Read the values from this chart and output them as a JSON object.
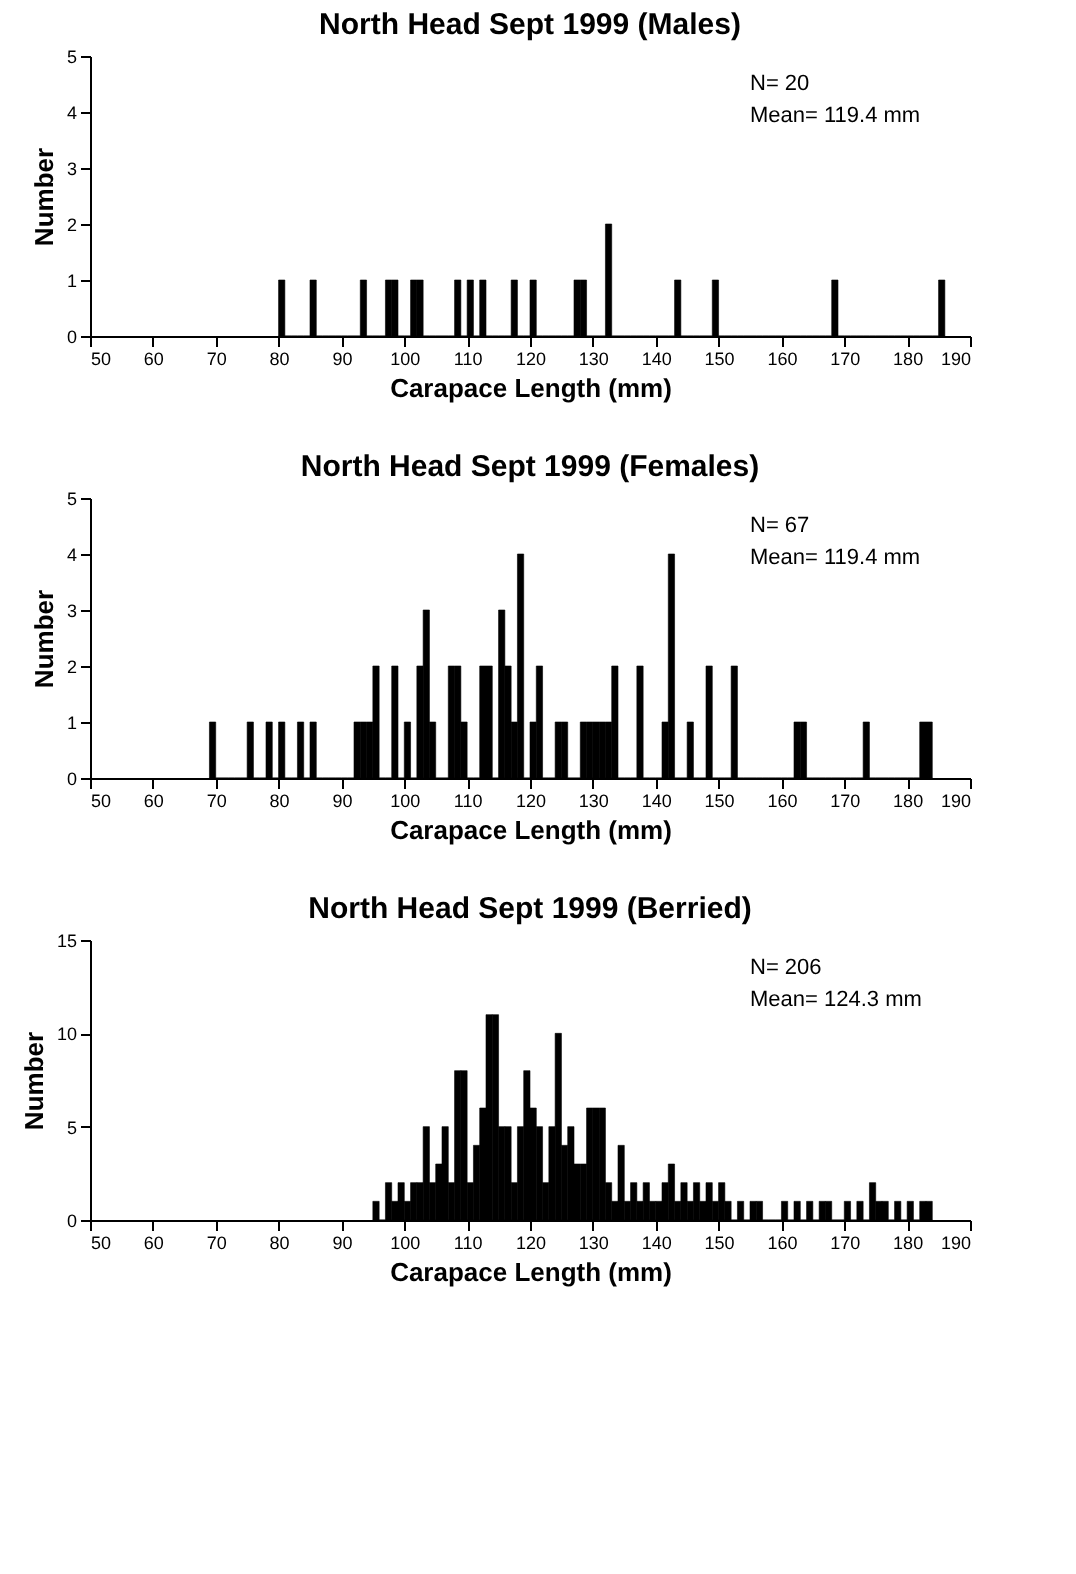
{
  "chart_data": [
    {
      "type": "histogram",
      "title": "North Head Sept 1999 (Males)",
      "xlabel": "Carapace Length (mm)",
      "ylabel": "Number",
      "color": "#000000",
      "bins": [
        80,
        81,
        82,
        83,
        84,
        85,
        86,
        87,
        88,
        89,
        90,
        91,
        92,
        93,
        94,
        95,
        96,
        97,
        98,
        99,
        100,
        101,
        102,
        103,
        104,
        105,
        106,
        107,
        108,
        109,
        110,
        111,
        112,
        113,
        114,
        115,
        116,
        117,
        118,
        119,
        120,
        121,
        122,
        123,
        124,
        125,
        126,
        127,
        128,
        129,
        130,
        131,
        132,
        133,
        134,
        135,
        136,
        137,
        138,
        139,
        140,
        141,
        142,
        143,
        144,
        145,
        146,
        147,
        148,
        149,
        150,
        151,
        152,
        153,
        154,
        155,
        156,
        157,
        158,
        159,
        160,
        161,
        162,
        163,
        164,
        165,
        166,
        167,
        168,
        169,
        170,
        171,
        172,
        173,
        174,
        175,
        176,
        177,
        178,
        179,
        180,
        181,
        182,
        183,
        184,
        185,
        186
      ],
      "values": [
        1,
        0,
        0,
        0,
        0,
        1,
        0,
        0,
        0,
        0,
        0,
        0,
        0,
        1,
        0,
        0,
        0,
        1,
        1,
        0,
        0,
        1,
        1,
        0,
        0,
        0,
        0,
        0,
        1,
        0,
        1,
        0,
        1,
        0,
        0,
        0,
        0,
        1,
        0,
        0,
        1,
        0,
        0,
        0,
        0,
        0,
        0,
        1,
        1,
        0,
        0,
        0,
        2,
        0,
        0,
        0,
        0,
        0,
        0,
        0,
        0,
        0,
        0,
        1,
        0,
        0,
        0,
        0,
        0,
        1,
        0,
        0,
        0,
        0,
        0,
        0,
        0,
        0,
        0,
        0,
        0,
        0,
        0,
        0,
        0,
        0,
        0,
        0,
        1,
        0,
        0,
        0,
        0,
        0,
        0,
        0,
        0,
        0,
        0,
        0,
        0,
        0,
        0,
        0,
        0,
        1
      ],
      "xlim": [
        50,
        190
      ],
      "xticks": [
        50,
        60,
        70,
        80,
        90,
        100,
        110,
        120,
        130,
        140,
        150,
        160,
        170,
        180,
        190
      ],
      "ylim": [
        0,
        5
      ],
      "yticks": [
        0,
        1,
        2,
        3,
        4,
        5
      ],
      "grid": false,
      "annotations": [
        "N= 20",
        "Mean= 119.4 mm"
      ]
    },
    {
      "type": "histogram",
      "title": "North Head Sept 1999 (Females)",
      "xlabel": "Carapace Length (mm)",
      "ylabel": "Number",
      "color": "#000000",
      "bins": [
        69,
        70,
        71,
        72,
        73,
        74,
        75,
        76,
        77,
        78,
        79,
        80,
        81,
        82,
        83,
        84,
        85,
        86,
        87,
        88,
        89,
        90,
        91,
        92,
        93,
        94,
        95,
        96,
        97,
        98,
        99,
        100,
        101,
        102,
        103,
        104,
        105,
        106,
        107,
        108,
        109,
        110,
        111,
        112,
        113,
        114,
        115,
        116,
        117,
        118,
        119,
        120,
        121,
        122,
        123,
        124,
        125,
        126,
        127,
        128,
        129,
        130,
        131,
        132,
        133,
        134,
        135,
        136,
        137,
        138,
        139,
        140,
        141,
        142,
        143,
        144,
        145,
        146,
        147,
        148,
        149,
        150,
        151,
        152,
        153,
        154,
        155,
        156,
        157,
        158,
        159,
        160,
        161,
        162,
        163,
        164,
        165,
        166,
        167,
        168,
        169,
        170,
        171,
        172,
        173,
        174,
        175,
        176,
        177,
        178,
        179,
        180,
        181,
        182,
        183,
        184
      ],
      "values": [
        1,
        0,
        0,
        0,
        0,
        0,
        1,
        0,
        0,
        1,
        0,
        1,
        0,
        0,
        1,
        0,
        1,
        0,
        0,
        0,
        0,
        0,
        0,
        1,
        1,
        1,
        2,
        0,
        0,
        2,
        0,
        1,
        0,
        2,
        3,
        1,
        0,
        0,
        2,
        2,
        1,
        0,
        0,
        2,
        2,
        0,
        3,
        2,
        1,
        4,
        0,
        1,
        2,
        0,
        0,
        1,
        1,
        0,
        0,
        1,
        1,
        1,
        1,
        1,
        2,
        0,
        0,
        0,
        2,
        0,
        0,
        0,
        1,
        4,
        0,
        0,
        1,
        0,
        0,
        2,
        0,
        0,
        0,
        2,
        0,
        0,
        0,
        0,
        0,
        0,
        0,
        0,
        0,
        1,
        1,
        0,
        0,
        0,
        0,
        0,
        0,
        0,
        0,
        0,
        1,
        0,
        0,
        0,
        0,
        0,
        0,
        0,
        0,
        1,
        1
      ],
      "xlim": [
        50,
        190
      ],
      "xticks": [
        50,
        60,
        70,
        80,
        90,
        100,
        110,
        120,
        130,
        140,
        150,
        160,
        170,
        180,
        190
      ],
      "ylim": [
        0,
        5
      ],
      "yticks": [
        0,
        1,
        2,
        3,
        4,
        5
      ],
      "grid": false,
      "annotations": [
        "N= 67",
        "Mean= 119.4 mm"
      ]
    },
    {
      "type": "histogram",
      "title": "North Head Sept 1999 (Berried)",
      "xlabel": "Carapace Length (mm)",
      "ylabel": "Number",
      "color": "#000000",
      "bins": [
        95,
        96,
        97,
        98,
        99,
        100,
        101,
        102,
        103,
        104,
        105,
        106,
        107,
        108,
        109,
        110,
        111,
        112,
        113,
        114,
        115,
        116,
        117,
        118,
        119,
        120,
        121,
        122,
        123,
        124,
        125,
        126,
        127,
        128,
        129,
        130,
        131,
        132,
        133,
        134,
        135,
        136,
        137,
        138,
        139,
        140,
        141,
        142,
        143,
        144,
        145,
        146,
        147,
        148,
        149,
        150,
        151,
        152,
        153,
        154,
        155,
        156,
        157,
        158,
        159,
        160,
        161,
        162,
        163,
        164,
        165,
        166,
        167,
        168,
        169,
        170,
        171,
        172,
        173,
        174,
        175,
        176,
        177,
        178,
        179,
        180,
        181,
        182,
        183,
        184
      ],
      "values": [
        1,
        0,
        2,
        1,
        2,
        1,
        2,
        2,
        5,
        2,
        3,
        5,
        2,
        8,
        8,
        2,
        4,
        6,
        11,
        11,
        5,
        5,
        2,
        5,
        8,
        6,
        5,
        2,
        5,
        10,
        4,
        5,
        3,
        3,
        6,
        6,
        6,
        2,
        1,
        4,
        1,
        2,
        1,
        2,
        1,
        1,
        2,
        3,
        1,
        2,
        1,
        2,
        1,
        2,
        1,
        2,
        1,
        0,
        1,
        0,
        1,
        1,
        0,
        0,
        0,
        1,
        0,
        1,
        0,
        1,
        0,
        1,
        1,
        0,
        0,
        1,
        0,
        1,
        0,
        2,
        1,
        1,
        0,
        1,
        0,
        1,
        0,
        1,
        1
      ],
      "xlim": [
        50,
        190
      ],
      "xticks": [
        50,
        60,
        70,
        80,
        90,
        100,
        110,
        120,
        130,
        140,
        150,
        160,
        170,
        180,
        190
      ],
      "ylim": [
        0,
        15
      ],
      "yticks": [
        0,
        5,
        10,
        15
      ],
      "grid": false,
      "annotations": [
        "N= 206",
        "Mean= 124.3 mm"
      ]
    }
  ]
}
